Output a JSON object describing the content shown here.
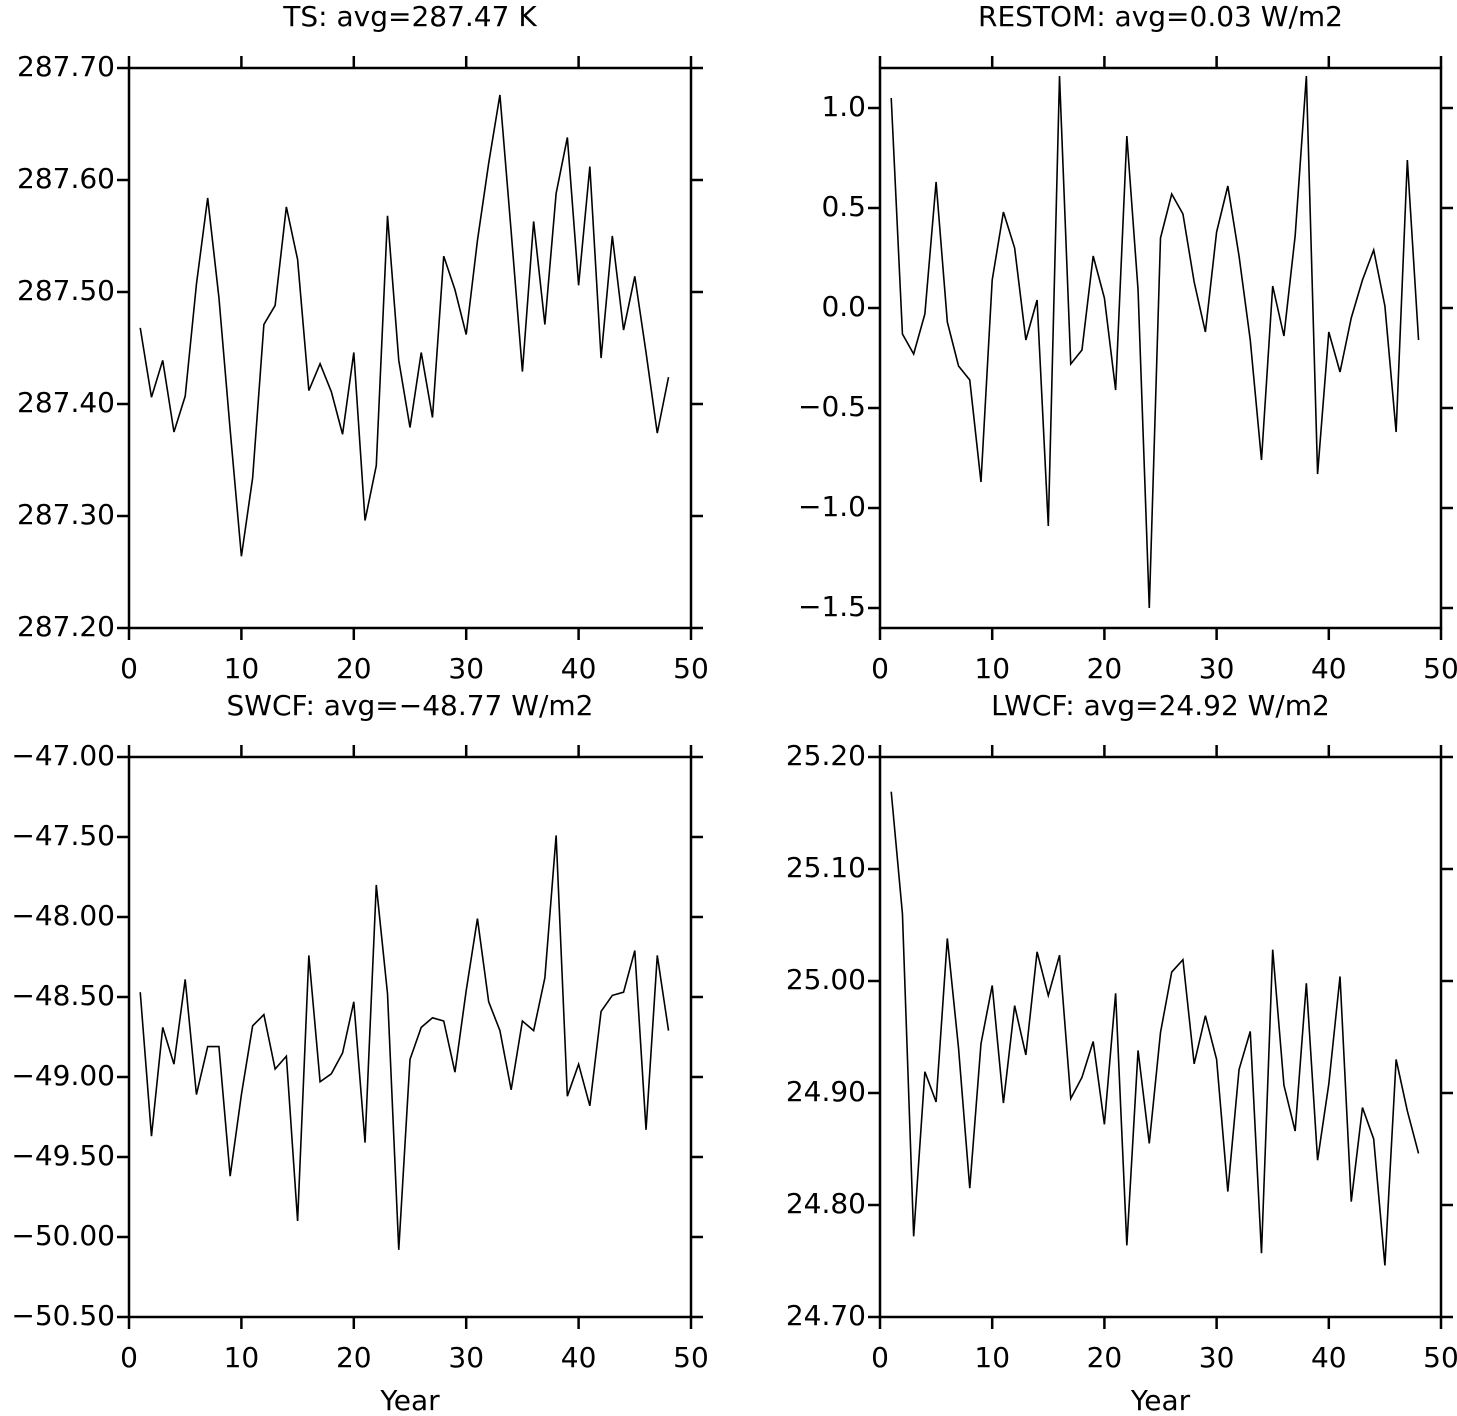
{
  "chart_data": [
    {
      "type": "line",
      "title": "TS: avg=287.47 K",
      "color": "#000000",
      "x": [
        1,
        2,
        3,
        4,
        5,
        6,
        7,
        8,
        9,
        10,
        11,
        12,
        13,
        14,
        15,
        16,
        17,
        18,
        19,
        20,
        21,
        22,
        23,
        24,
        25,
        26,
        27,
        28,
        29,
        30,
        31,
        32,
        33,
        34,
        35,
        36,
        37,
        38,
        39,
        40,
        41,
        42,
        43,
        44,
        45,
        46,
        47,
        48
      ],
      "values": [
        287.468,
        287.406,
        287.439,
        287.375,
        287.407,
        287.507,
        287.584,
        287.495,
        287.377,
        287.264,
        287.334,
        287.471,
        287.488,
        287.576,
        287.529,
        287.412,
        287.436,
        287.411,
        287.373,
        287.446,
        287.296,
        287.345,
        287.568,
        287.439,
        287.379,
        287.446,
        287.388,
        287.532,
        287.502,
        287.462,
        287.546,
        287.615,
        287.676,
        287.554,
        287.429,
        287.563,
        287.471,
        287.588,
        287.638,
        287.506,
        287.612,
        287.441,
        287.55,
        287.466,
        287.514,
        287.446,
        287.374,
        287.424
      ],
      "xlim": [
        0,
        50
      ],
      "xticks": [
        0,
        10,
        20,
        30,
        40,
        50
      ],
      "ylim": [
        287.2,
        287.7
      ],
      "yticks": [
        {
          "value": 287.2,
          "label": "287.20"
        },
        {
          "value": 287.3,
          "label": "287.30"
        },
        {
          "value": 287.4,
          "label": "287.40"
        },
        {
          "value": 287.5,
          "label": "287.50"
        },
        {
          "value": 287.6,
          "label": "287.60"
        },
        {
          "value": 287.7,
          "label": "287.70"
        }
      ]
    },
    {
      "type": "line",
      "title": "RESTOM: avg=0.03 W/m2",
      "color": "#000000",
      "x": [
        1,
        2,
        3,
        4,
        5,
        6,
        7,
        8,
        9,
        10,
        11,
        12,
        13,
        14,
        15,
        16,
        17,
        18,
        19,
        20,
        21,
        22,
        23,
        24,
        25,
        26,
        27,
        28,
        29,
        30,
        31,
        32,
        33,
        34,
        35,
        36,
        37,
        38,
        39,
        40,
        41,
        42,
        43,
        44,
        45,
        46,
        47,
        48
      ],
      "values": [
        1.05,
        -0.13,
        -0.23,
        -0.03,
        0.63,
        -0.07,
        -0.29,
        -0.36,
        -0.87,
        0.14,
        0.48,
        0.3,
        -0.16,
        0.04,
        -1.09,
        1.16,
        -0.28,
        -0.21,
        0.26,
        0.05,
        -0.41,
        0.86,
        0.09,
        -1.5,
        0.35,
        0.57,
        0.47,
        0.13,
        -0.12,
        0.38,
        0.61,
        0.26,
        -0.16,
        -0.76,
        0.11,
        -0.14,
        0.36,
        1.16,
        -0.83,
        -0.12,
        -0.32,
        -0.05,
        0.14,
        0.29,
        0.01,
        -0.62,
        0.74,
        -0.16
      ],
      "xlim": [
        0,
        50
      ],
      "xticks": [
        0,
        10,
        20,
        30,
        40,
        50
      ],
      "ylim": [
        -1.6,
        1.2
      ],
      "yticks": [
        {
          "value": -1.5,
          "label": "−1.5"
        },
        {
          "value": -1,
          "label": "−1.0"
        },
        {
          "value": -0.5,
          "label": "−0.5"
        },
        {
          "value": 0,
          "label": "0.0"
        },
        {
          "value": 0.5,
          "label": "0.5"
        },
        {
          "value": 1,
          "label": "1.0"
        }
      ]
    },
    {
      "type": "line",
      "title": "SWCF: avg=−48.77 W/m2",
      "xlabel": "Year",
      "color": "#000000",
      "x": [
        1,
        2,
        3,
        4,
        5,
        6,
        7,
        8,
        9,
        10,
        11,
        12,
        13,
        14,
        15,
        16,
        17,
        18,
        19,
        20,
        21,
        22,
        23,
        24,
        25,
        26,
        27,
        28,
        29,
        30,
        31,
        32,
        33,
        34,
        35,
        36,
        37,
        38,
        39,
        40,
        41,
        42,
        43,
        44,
        45,
        46,
        47,
        48
      ],
      "values": [
        -48.47,
        -49.37,
        -48.69,
        -48.92,
        -48.39,
        -49.11,
        -48.81,
        -48.81,
        -49.62,
        -49.11,
        -48.68,
        -48.61,
        -48.95,
        -48.87,
        -49.9,
        -48.24,
        -49.03,
        -48.98,
        -48.85,
        -48.53,
        -49.41,
        -47.8,
        -48.48,
        -50.08,
        -48.89,
        -48.69,
        -48.63,
        -48.65,
        -48.97,
        -48.46,
        -48.01,
        -48.53,
        -48.71,
        -49.08,
        -48.65,
        -48.71,
        -48.38,
        -47.49,
        -49.12,
        -48.92,
        -49.18,
        -48.59,
        -48.49,
        -48.47,
        -48.21,
        -49.33,
        -48.24,
        -48.71
      ],
      "xlim": [
        0,
        50
      ],
      "xticks": [
        0,
        10,
        20,
        30,
        40,
        50
      ],
      "ylim": [
        -50.5,
        -47
      ],
      "yticks": [
        {
          "value": -50.5,
          "label": "−50.50"
        },
        {
          "value": -50,
          "label": "−50.00"
        },
        {
          "value": -49.5,
          "label": "−49.50"
        },
        {
          "value": -49,
          "label": "−49.00"
        },
        {
          "value": -48.5,
          "label": "−48.50"
        },
        {
          "value": -48,
          "label": "−48.00"
        },
        {
          "value": -47.5,
          "label": "−47.50"
        },
        {
          "value": -47,
          "label": "−47.00"
        }
      ]
    },
    {
      "type": "line",
      "title": "LWCF: avg=24.92 W/m2",
      "xlabel": "Year",
      "color": "#000000",
      "x": [
        1,
        2,
        3,
        4,
        5,
        6,
        7,
        8,
        9,
        10,
        11,
        12,
        13,
        14,
        15,
        16,
        17,
        18,
        19,
        20,
        21,
        22,
        23,
        24,
        25,
        26,
        27,
        28,
        29,
        30,
        31,
        32,
        33,
        34,
        35,
        36,
        37,
        38,
        39,
        40,
        41,
        42,
        43,
        44,
        45,
        46,
        47,
        48
      ],
      "values": [
        25.169,
        25.06,
        24.772,
        24.919,
        24.892,
        25.038,
        24.94,
        24.815,
        24.944,
        24.996,
        24.891,
        24.978,
        24.934,
        25.026,
        24.987,
        25.023,
        24.895,
        24.914,
        24.946,
        24.872,
        24.989,
        24.764,
        24.938,
        24.855,
        24.954,
        25.008,
        25.019,
        24.926,
        24.969,
        24.93,
        24.812,
        24.921,
        24.955,
        24.757,
        25.028,
        24.907,
        24.866,
        24.998,
        24.84,
        24.908,
        25.004,
        24.803,
        24.887,
        24.859,
        24.746,
        24.93,
        24.884,
        24.846
      ],
      "xlim": [
        0,
        50
      ],
      "xticks": [
        0,
        10,
        20,
        30,
        40,
        50
      ],
      "ylim": [
        24.7,
        25.2
      ],
      "yticks": [
        {
          "value": 24.7,
          "label": "24.70"
        },
        {
          "value": 24.8,
          "label": "24.80"
        },
        {
          "value": 24.9,
          "label": "24.90"
        },
        {
          "value": 25,
          "label": "25.00"
        },
        {
          "value": 25.1,
          "label": "25.10"
        },
        {
          "value": 25.2,
          "label": "25.20"
        }
      ]
    }
  ]
}
